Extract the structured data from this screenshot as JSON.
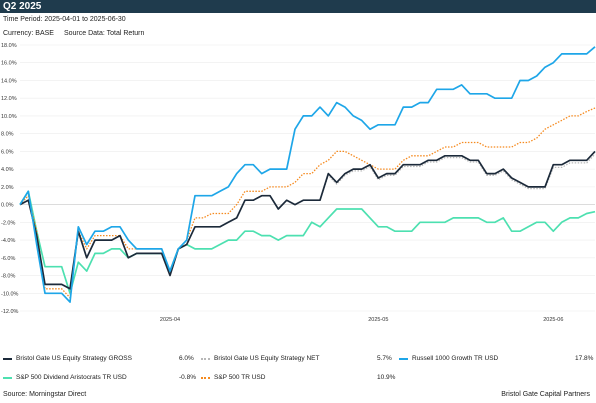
{
  "header": {
    "title": "Q2 2025",
    "time_period": "Time Period: 2025-04-01 to 2025-06-30",
    "currency": "Currency: BASE",
    "source_data": "Source Data: Total Return"
  },
  "footer": {
    "source": "Source: Morningstar Direct",
    "brand": "Bristol Gate Capital Partners"
  },
  "chart_data": {
    "type": "line",
    "ylim": [
      -12,
      18
    ],
    "yticks": [
      -12,
      -10,
      -8,
      -6,
      -4,
      -2,
      0,
      2,
      4,
      6,
      8,
      10,
      12,
      14,
      16,
      18
    ],
    "ytick_labels": [
      "-12.0%",
      "-10.0%",
      "-8.0%",
      "-6.0%",
      "-4.0%",
      "-2.0%",
      "0.0%",
      "2.0%",
      "4.0%",
      "6.0%",
      "8.0%",
      "10.0%",
      "12.0%",
      "14.0%",
      "16.0%",
      "18.0%"
    ],
    "xtick_labels": [
      "2025-04",
      "2025-05",
      "2025-06"
    ],
    "xticks_index": [
      18,
      43,
      64
    ],
    "grid": "horizontal",
    "legend_position": "bottom",
    "series": [
      {
        "name": "Bristol Gate US Equity Strategy GROSS",
        "final_label": "6.0%",
        "color": "#1c2a3a",
        "style": "solid",
        "values": [
          0,
          0.5,
          -3.5,
          -9,
          -9,
          -9,
          -9.5,
          -3,
          -6,
          -4,
          -4,
          -4,
          -3.5,
          -6,
          -5.5,
          -5.5,
          -5.5,
          -5.5,
          -8,
          -5,
          -4.5,
          -2.5,
          -2.5,
          -2.5,
          -2.5,
          -2,
          -1.5,
          0.5,
          0.5,
          1,
          1,
          -0.5,
          0.5,
          0,
          0.5,
          0.5,
          0.5,
          3.5,
          2.5,
          3.5,
          4,
          4,
          4.5,
          3,
          3.5,
          3.5,
          4.5,
          4.5,
          4.5,
          5,
          5,
          5.5,
          5.5,
          5.5,
          5,
          5,
          3.5,
          3.5,
          4,
          3,
          2.5,
          2,
          2,
          2,
          4.5,
          4.5,
          5,
          5,
          5,
          6
        ]
      },
      {
        "name": "Bristol Gate US Equity Strategy NET",
        "final_label": "5.7%",
        "color": "#b8b8b8",
        "style": "dotted",
        "values": [
          0,
          0.5,
          -3.5,
          -9,
          -9,
          -9,
          -9.5,
          -3,
          -6,
          -4,
          -4,
          -4,
          -3.5,
          -6,
          -5.5,
          -5.5,
          -5.5,
          -5.5,
          -8,
          -5,
          -4.5,
          -2.5,
          -2.5,
          -2.5,
          -2.5,
          -2,
          -1.5,
          0.5,
          0.5,
          1,
          1,
          -0.5,
          0.5,
          0,
          0.5,
          0.5,
          0.5,
          3.3,
          2.3,
          3.3,
          3.8,
          3.8,
          4.3,
          2.8,
          3.3,
          3.3,
          4.3,
          4.3,
          4.3,
          4.8,
          4.8,
          5.3,
          5.3,
          5.3,
          4.8,
          4.8,
          3.3,
          3.3,
          3.8,
          2.8,
          2.3,
          1.8,
          1.8,
          1.8,
          4.2,
          4.2,
          4.7,
          4.7,
          4.7,
          5.7
        ]
      },
      {
        "name": "Russell 1000 Growth TR USD",
        "final_label": "17.8%",
        "color": "#1ea6e8",
        "style": "solid",
        "values": [
          0,
          1.5,
          -4.5,
          -10,
          -10,
          -10,
          -11,
          -2.5,
          -4.5,
          -3,
          -3,
          -2.5,
          -2.5,
          -4,
          -5,
          -5,
          -5,
          -5,
          -7.5,
          -5,
          -4,
          1,
          1,
          1,
          1.5,
          2,
          3.5,
          4.5,
          4.5,
          3.5,
          4,
          4,
          4,
          8.5,
          10,
          10,
          11,
          10,
          11.5,
          11,
          10,
          9.5,
          8.5,
          9,
          9,
          9,
          11,
          11,
          11.5,
          11.5,
          13,
          13,
          13,
          13.5,
          12.5,
          12.5,
          12.5,
          12,
          12,
          12,
          14,
          14,
          14.5,
          15.5,
          16,
          17,
          17,
          17,
          17,
          17.8
        ]
      },
      {
        "name": "S&P 500 Dividend Aristocrats TR USD",
        "final_label": "-0.8%",
        "color": "#4de0b0",
        "style": "solid",
        "values": [
          0,
          1.5,
          -3,
          -7,
          -7,
          -7,
          -10,
          -6.5,
          -7.5,
          -5.5,
          -5.5,
          -5,
          -5,
          -6,
          -5.5,
          -5.5,
          -5.5,
          -5.5,
          -7.5,
          -5,
          -4.5,
          -5,
          -5,
          -5,
          -4.5,
          -4,
          -4,
          -3,
          -3,
          -3.5,
          -3.5,
          -4,
          -3.5,
          -3.5,
          -3.5,
          -2,
          -2.5,
          -1.5,
          -0.5,
          -0.5,
          -0.5,
          -0.5,
          -1.5,
          -2.5,
          -2.5,
          -3,
          -3,
          -3,
          -2,
          -2,
          -2,
          -2,
          -1.5,
          -1.5,
          -1.5,
          -1.5,
          -2,
          -2,
          -1.5,
          -3,
          -3,
          -2.5,
          -2,
          -2,
          -3,
          -2,
          -1.5,
          -1.5,
          -1,
          -0.8
        ]
      },
      {
        "name": "S&P 500 TR USD",
        "final_label": "10.9%",
        "color": "#f58a1f",
        "style": "dotted",
        "values": [
          0,
          1,
          -3,
          -9.5,
          -9.5,
          -9.5,
          -10.5,
          -3,
          -5,
          -3.5,
          -3.5,
          -3.5,
          -3.5,
          -5,
          -5,
          -5,
          -5,
          -5,
          -7.5,
          -5,
          -4,
          -1.5,
          -1.5,
          -1,
          -1,
          -1,
          0,
          1.5,
          1.5,
          1.5,
          2,
          2,
          2,
          2.5,
          3.5,
          3.5,
          4.5,
          5,
          6,
          6,
          5.5,
          5,
          4.5,
          4,
          4,
          4,
          5,
          5.5,
          5.5,
          5.5,
          6,
          6.5,
          6.5,
          7,
          7,
          7,
          6.5,
          6.5,
          6.5,
          6.5,
          7,
          7,
          7.5,
          8.5,
          9,
          9.5,
          10,
          10,
          10.5,
          10.9
        ]
      }
    ]
  }
}
